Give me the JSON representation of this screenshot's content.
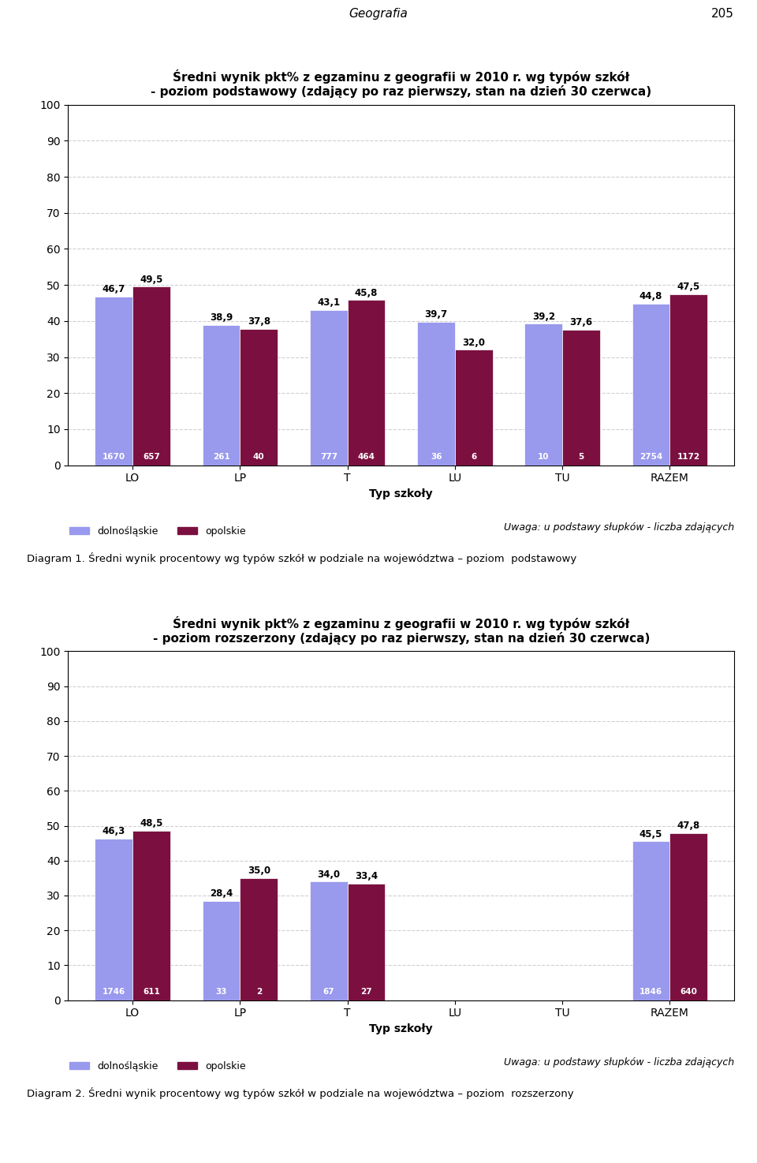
{
  "annotations": [
    "Geografia",
    "205"
  ],
  "chart_data": [
    {
      "type": "bar",
      "title": "Średni wynik pkt% z egzaminu z geografii w 2010 r. wg typów szkół",
      "subtitle": "- poziom podstawowy (zdający po raz pierwszy, stan na dzień 30 czerwca)",
      "x_label": "Typ szkoły",
      "categories": [
        "LO",
        "LP",
        "T",
        "LU",
        "TU",
        "RAZEM"
      ],
      "series": [
        {
          "name": "dolnośląskie",
          "color": "#9999EE",
          "values": [
            46.7,
            38.9,
            43.1,
            39.7,
            39.2,
            44.8
          ],
          "value_labels": [
            "46,7",
            "38,9",
            "43,1",
            "39,7",
            "39,2",
            "44,8"
          ],
          "counts": [
            1670,
            261,
            777,
            36,
            10,
            2754
          ]
        },
        {
          "name": "opolskie",
          "color": "#7B1040",
          "values": [
            49.5,
            37.8,
            45.8,
            32.0,
            37.6,
            47.5
          ],
          "value_labels": [
            "49,5",
            "37,8",
            "45,8",
            "32,0",
            "37,6",
            "47,5"
          ],
          "counts": [
            657,
            40,
            464,
            6,
            5,
            1172
          ]
        }
      ],
      "ylim": [
        0,
        100
      ],
      "yticks": [
        0,
        10,
        20,
        30,
        40,
        50,
        60,
        70,
        80,
        90,
        100
      ],
      "grid": true,
      "legend": "upper left",
      "annotations": [
        "Uwaga: u podstawy słupków - liczba zdających",
        "Diagram 1. Średni wynik procentowy wg typów szkół w podziale na województwa – poziom  podstawowy"
      ]
    },
    {
      "type": "bar",
      "title": "Średni wynik pkt% z egzaminu z geografii w 2010 r. wg typów szkół",
      "subtitle": "- poziom rozszerzony (zdający po raz pierwszy, stan na dzień 30 czerwca)",
      "x_label": "Typ szkoły",
      "categories": [
        "LO",
        "LP",
        "T",
        "LU",
        "TU",
        "RAZEM"
      ],
      "series": [
        {
          "name": "dolnośląskie",
          "color": "#9999EE",
          "values": [
            46.3,
            28.4,
            34.0,
            0,
            0,
            45.5
          ],
          "value_labels": [
            "46,3",
            "28,4",
            "34,0",
            null,
            null,
            "45,5"
          ],
          "counts": [
            1746,
            33,
            67,
            null,
            null,
            1846
          ]
        },
        {
          "name": "opolskie",
          "color": "#7B1040",
          "values": [
            48.5,
            35.0,
            33.4,
            0,
            0,
            47.8
          ],
          "value_labels": [
            "48,5",
            "35,0",
            "33,4",
            null,
            null,
            "47,8"
          ],
          "counts": [
            611,
            2,
            27,
            null,
            null,
            640
          ]
        }
      ],
      "ylim": [
        0,
        100
      ],
      "yticks": [
        0,
        10,
        20,
        30,
        40,
        50,
        60,
        70,
        80,
        90,
        100
      ],
      "grid": true,
      "legend": "upper left",
      "annotations": [
        "Uwaga: u podstawy słupków - liczba zdających",
        "Diagram 2. Średni wynik procentowy wg typów szkół w podziale na województwa – poziom  rozszerzony"
      ]
    }
  ]
}
